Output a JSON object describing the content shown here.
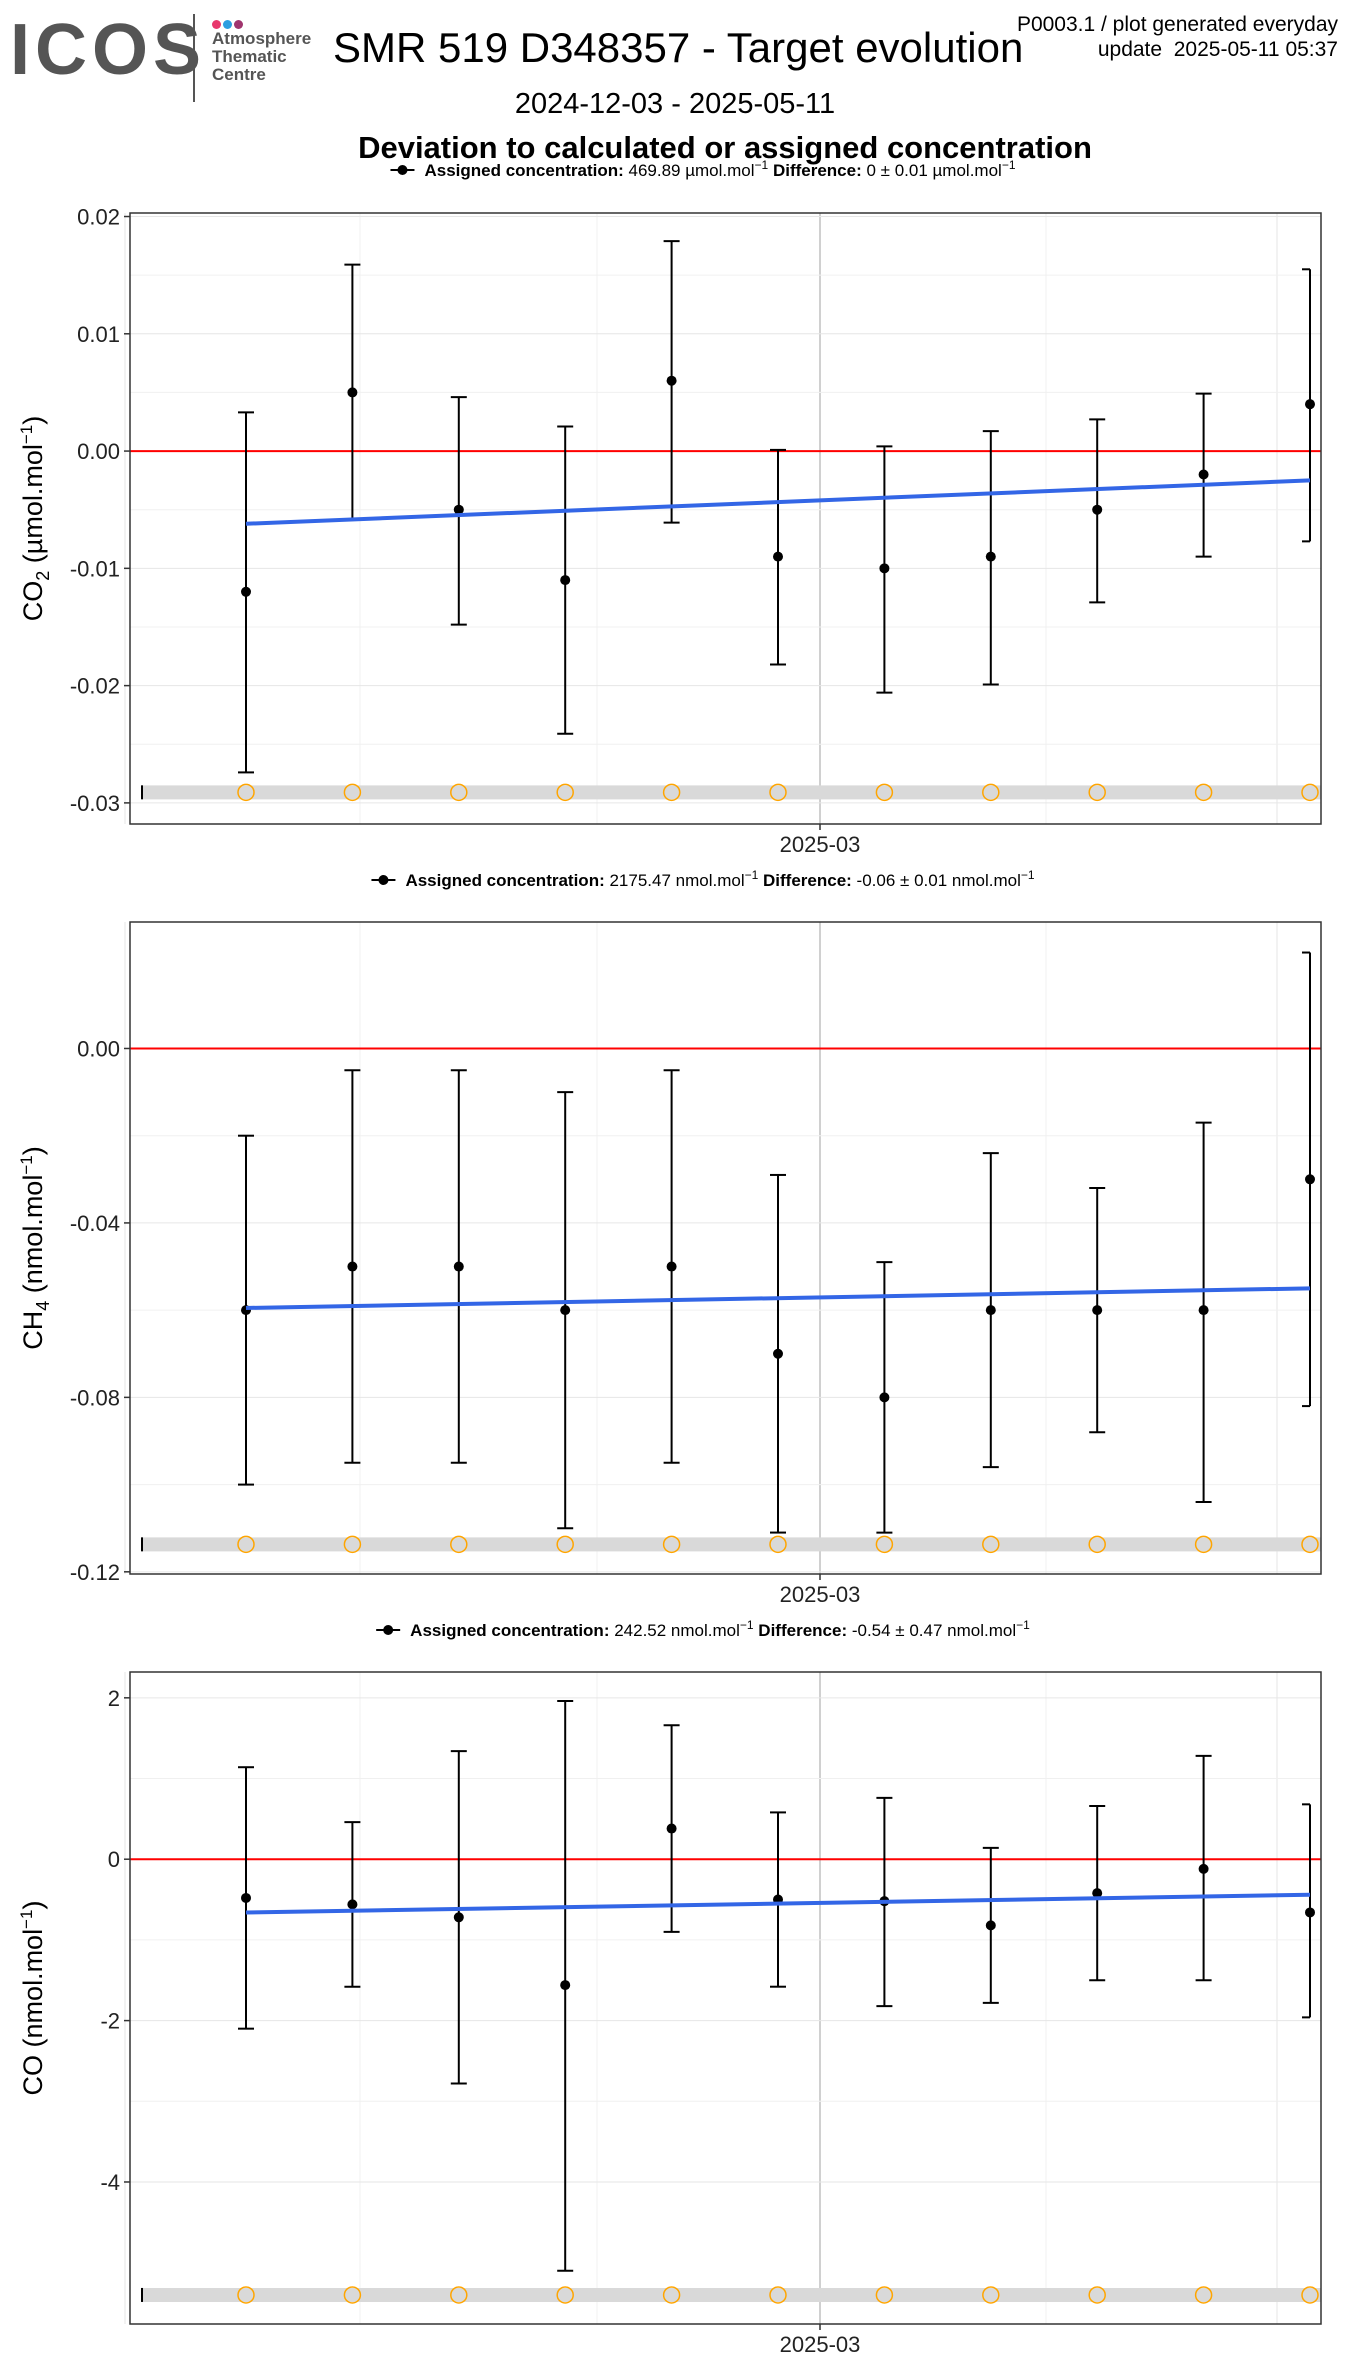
{
  "logo": {
    "text": "ICOS",
    "sub_lines": [
      "Atmosphere",
      "Thematic",
      "Centre"
    ],
    "dot_colors": [
      "#e8386d",
      "#2d9ee0",
      "#a0356e"
    ]
  },
  "header": {
    "title": "SMR 519 D348357 - Target evolution",
    "corner_line1": "P0003.1 / plot generated everyday",
    "corner_line2": "update  2025-05-11 05:37",
    "date_range": "2024-12-03 - 2025-05-11",
    "subtitle": "Deviation to calculated or assigned concentration"
  },
  "colors": {
    "zero_line": "#ff0000",
    "trend": "#3366e6",
    "flag_circle": "#ffa500",
    "flag_band": "#d9d9d9"
  },
  "chart_data": [
    {
      "type": "scatter",
      "legend": {
        "label": "Assigned concentration:",
        "value": "469.89 µmol.mol",
        "diff_label": "Difference:",
        "diff_value": "0 ± 0.01 µmol.mol",
        "sup": "−1"
      },
      "ylabel": {
        "species": "CO",
        "sub": "2",
        "unit": " (µmol.mol",
        "sup": "−1",
        "close": ")"
      },
      "ylim": [
        -0.0318,
        0.0203
      ],
      "yticks": [
        0.02,
        0.01,
        0.0,
        -0.01,
        -0.02,
        -0.03
      ],
      "ytick_labels": [
        "0.02",
        "0.01",
        "0.00",
        "-0.01",
        "-0.02",
        "-0.03"
      ],
      "x_tick_label": "2025-03",
      "grid": true,
      "x": [
        1,
        2,
        3,
        4,
        5,
        6,
        7,
        8,
        9,
        10,
        11
      ],
      "y": [
        -0.012,
        0.005,
        -0.005,
        -0.011,
        0.006,
        -0.009,
        -0.01,
        -0.009,
        -0.005,
        -0.002,
        0.004
      ],
      "err_low": [
        -0.0274,
        -0.0058,
        -0.0148,
        -0.0241,
        -0.0061,
        -0.0182,
        -0.0206,
        -0.0199,
        -0.0129,
        -0.009,
        -0.0077
      ],
      "err_high": [
        0.0033,
        0.0159,
        0.0046,
        0.0021,
        0.0179,
        0.0001,
        0.0004,
        0.0017,
        0.0027,
        0.0049,
        0.0155
      ],
      "trend": [
        -0.0062,
        -0.0025
      ],
      "flag_level": -0.0291
    },
    {
      "type": "scatter",
      "legend": {
        "label": "Assigned concentration:",
        "value": "2175.47 nmol.mol",
        "diff_label": "Difference:",
        "diff_value": "-0.06 ± 0.01 nmol.mol",
        "sup": "−1"
      },
      "ylabel": {
        "species": "CH",
        "sub": "4",
        "unit": " (nmol.mol",
        "sup": "−1",
        "close": ")"
      },
      "ylim": [
        -0.1205,
        0.029
      ],
      "yticks": [
        0.0,
        -0.04,
        -0.08,
        -0.12
      ],
      "ytick_labels": [
        "0.00",
        "-0.04",
        "-0.08",
        "-0.12"
      ],
      "x_tick_label": "2025-03",
      "grid": true,
      "x": [
        1,
        2,
        3,
        4,
        5,
        6,
        7,
        8,
        9,
        10,
        11
      ],
      "y": [
        -0.06,
        -0.05,
        -0.05,
        -0.06,
        -0.05,
        -0.07,
        -0.08,
        -0.06,
        -0.06,
        -0.06,
        -0.03
      ],
      "err_low": [
        -0.1,
        -0.095,
        -0.095,
        -0.11,
        -0.095,
        -0.111,
        -0.111,
        -0.096,
        -0.088,
        -0.104,
        -0.082
      ],
      "err_high": [
        -0.02,
        -0.005,
        -0.005,
        -0.01,
        -0.005,
        -0.029,
        -0.049,
        -0.024,
        -0.032,
        -0.017,
        0.022
      ],
      "trend": [
        -0.0595,
        -0.055
      ],
      "flag_level": -0.1137
    },
    {
      "type": "scatter",
      "legend": {
        "label": "Assigned concentration:",
        "value": "242.52 nmol.mol",
        "diff_label": "Difference:",
        "diff_value": "-0.54 ± 0.47 nmol.mol",
        "sup": "−1"
      },
      "ylabel": {
        "species": "CO",
        "sub": "",
        "unit": " (nmol.mol",
        "sup": "−1",
        "close": ")"
      },
      "ylim": [
        -5.76,
        2.32
      ],
      "yticks": [
        2,
        0,
        -2,
        -4
      ],
      "ytick_labels": [
        "2",
        "0",
        "-2",
        "-4"
      ],
      "x_tick_label": "2025-03",
      "grid": true,
      "x": [
        1,
        2,
        3,
        4,
        5,
        6,
        7,
        8,
        9,
        10,
        11
      ],
      "y": [
        -0.48,
        -0.56,
        -0.72,
        -1.56,
        0.38,
        -0.5,
        -0.52,
        -0.82,
        -0.42,
        -0.12,
        -0.66
      ],
      "err_low": [
        -2.1,
        -1.58,
        -2.78,
        -5.1,
        -0.9,
        -1.58,
        -1.82,
        -1.78,
        -1.5,
        -1.5,
        -1.96
      ],
      "err_high": [
        1.14,
        0.46,
        1.34,
        1.96,
        1.66,
        0.58,
        0.76,
        0.14,
        0.66,
        1.28,
        0.68
      ],
      "trend": [
        -0.66,
        -0.44
      ],
      "flag_level": -5.4
    }
  ]
}
